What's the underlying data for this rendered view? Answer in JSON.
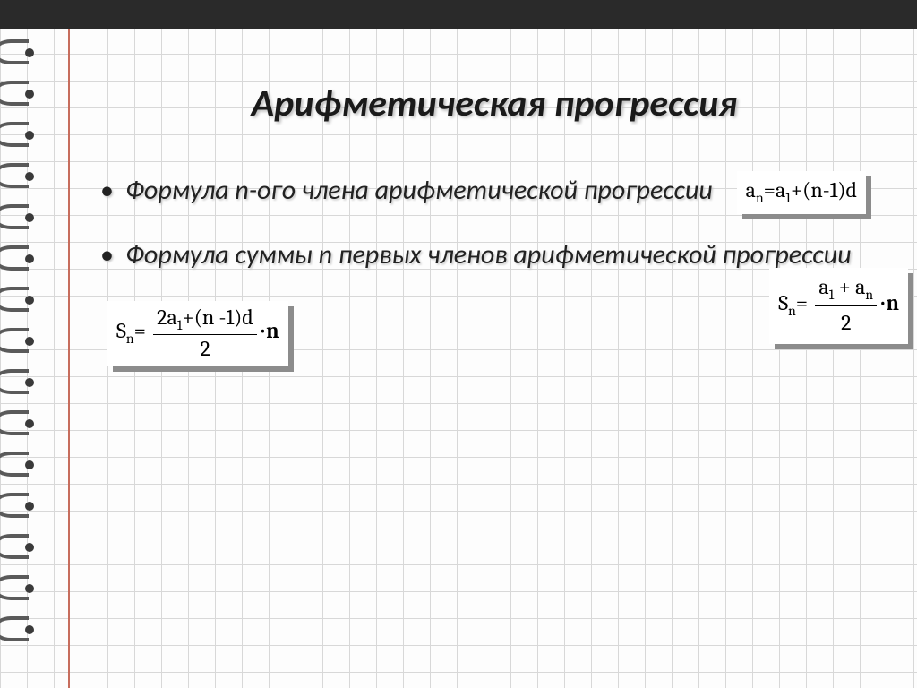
{
  "title": "Арифметическая прогрессия",
  "bullets": {
    "b1_pre": "Формула n-ого члена арифметической прогрессии",
    "b2_pre": "Формула суммы n первых членов арифметической прогрессии"
  },
  "formulas": {
    "nth_term": {
      "lhs_base": "a",
      "lhs_sub": "n",
      "rhs_a": "a",
      "rhs_a_sub": "1",
      "rhs_tail": "+(n-1)d"
    },
    "sum1": {
      "S": "S",
      "S_sub": "n",
      "num_a": "a",
      "num_a_sub": "1",
      "num_plus": "+ a",
      "num_b_sub": "n",
      "den": "2",
      "tail": "n"
    },
    "sum2": {
      "S": "S",
      "S_sub": "n",
      "num_pre": "2a",
      "num_a_sub": "1",
      "num_tail": "+(n -1)d",
      "den": "2",
      "tail": "n"
    }
  },
  "style": {
    "title_fontsize": 42,
    "body_fontsize": 30,
    "formula_fontsize": 24,
    "text_color": "#1a1a1a",
    "grid_color": "#d8d8d8",
    "grid_size": 30,
    "margin_line_color": "#c76d5d",
    "shadow_color": "#8c8c8c",
    "background": "#fdfdfd"
  }
}
